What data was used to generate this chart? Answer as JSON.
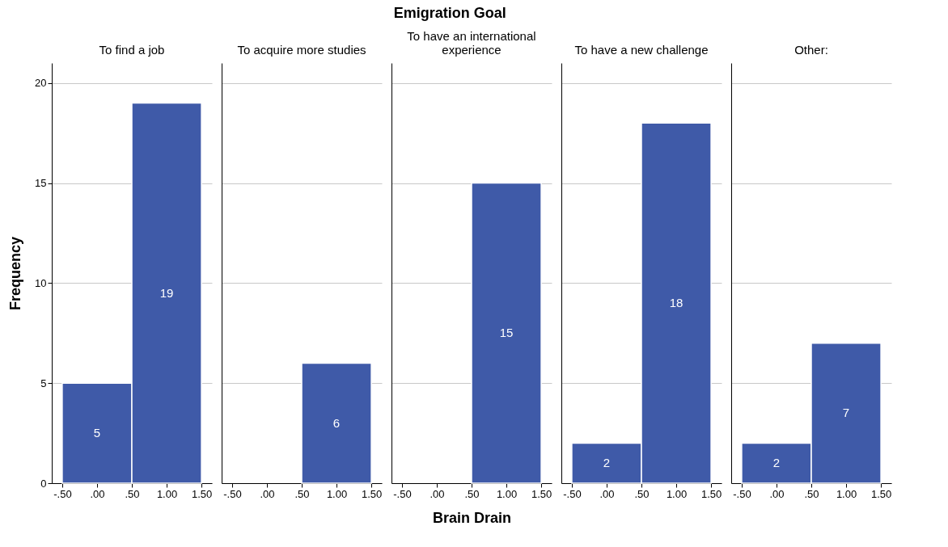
{
  "chart_data": [
    {
      "type": "histogram",
      "title": "To find a job",
      "annotations": [
        "Emigration Goal"
      ],
      "ylabel": "Frequency",
      "bins": [
        -0.5,
        0.5,
        1.5
      ],
      "values": [
        5,
        19
      ],
      "color": "#3f5aa8",
      "data_labels": true,
      "xlim": [
        -0.65,
        1.65
      ],
      "ylim": [
        0,
        21
      ],
      "xticks": [
        {
          "value": -0.5,
          "label": "-.50"
        },
        {
          "value": 0,
          "label": ".00"
        },
        {
          "value": 0.5,
          "label": ".50"
        },
        {
          "value": 1,
          "label": "1.00"
        },
        {
          "value": 1.5,
          "label": "1.50"
        }
      ],
      "yticks": [
        0,
        5,
        10,
        15,
        20
      ],
      "grid": "y"
    },
    {
      "type": "histogram",
      "title": "To acquire more studies",
      "bins": [
        -0.5,
        0.5,
        1.5
      ],
      "values": [
        0,
        6
      ],
      "value_labels": [
        null,
        "6"
      ],
      "color": "#3f5aa8",
      "xlim": [
        -0.65,
        1.65
      ],
      "ylim": [
        0,
        21
      ],
      "xticks": [
        {
          "value": -0.5,
          "label": "-.50"
        },
        {
          "value": 0,
          "label": ".00"
        },
        {
          "value": 0.5,
          "label": ".50"
        },
        {
          "value": 1,
          "label": "1.00"
        },
        {
          "value": 1.5,
          "label": "1.50"
        }
      ],
      "yticks": [
        0,
        5,
        10,
        15,
        20
      ],
      "grid": "y",
      "tick_labels": "x"
    },
    {
      "type": "histogram",
      "title": "To have an international experience",
      "xlabel": "Brain Drain",
      "bins": [
        -0.5,
        0.5,
        1.5
      ],
      "values": [
        0,
        15
      ],
      "value_labels": [
        null,
        "15"
      ],
      "color": "#3f5aa8",
      "xlim": [
        -0.65,
        1.65
      ],
      "ylim": [
        0,
        21
      ],
      "xticks": [
        {
          "value": -0.5,
          "label": "-.50"
        },
        {
          "value": 0,
          "label": ".00"
        },
        {
          "value": 0.5,
          "label": ".50"
        },
        {
          "value": 1,
          "label": "1.00"
        },
        {
          "value": 1.5,
          "label": "1.50"
        }
      ],
      "yticks": [
        0,
        5,
        10,
        15,
        20
      ],
      "grid": "y",
      "tick_labels": "x"
    },
    {
      "type": "histogram",
      "title": "To have a new challenge",
      "bins": [
        -0.5,
        0.5,
        1.5
      ],
      "values": [
        2,
        18
      ],
      "color": "#3f5aa8",
      "data_labels": true,
      "xlim": [
        -0.65,
        1.65
      ],
      "ylim": [
        0,
        21
      ],
      "xticks": [
        {
          "value": -0.5,
          "label": "-.50"
        },
        {
          "value": 0,
          "label": ".00"
        },
        {
          "value": 0.5,
          "label": ".50"
        },
        {
          "value": 1,
          "label": "1.00"
        },
        {
          "value": 1.5,
          "label": "1.50"
        }
      ],
      "yticks": [
        0,
        5,
        10,
        15,
        20
      ],
      "grid": "y",
      "tick_labels": "x"
    },
    {
      "type": "histogram",
      "title": "Other:",
      "bins": [
        -0.5,
        0.5,
        1.5
      ],
      "values": [
        2,
        7
      ],
      "color": "#3f5aa8",
      "data_labels": true,
      "xlim": [
        -0.65,
        1.65
      ],
      "ylim": [
        0,
        21
      ],
      "xticks": [
        {
          "value": -0.5,
          "label": "-.50"
        },
        {
          "value": 0,
          "label": ".00"
        },
        {
          "value": 0.5,
          "label": ".50"
        },
        {
          "value": 1,
          "label": "1.00"
        },
        {
          "value": 1.5,
          "label": "1.50"
        }
      ],
      "yticks": [
        0,
        5,
        10,
        15,
        20
      ],
      "grid": "y",
      "tick_labels": "x"
    }
  ]
}
